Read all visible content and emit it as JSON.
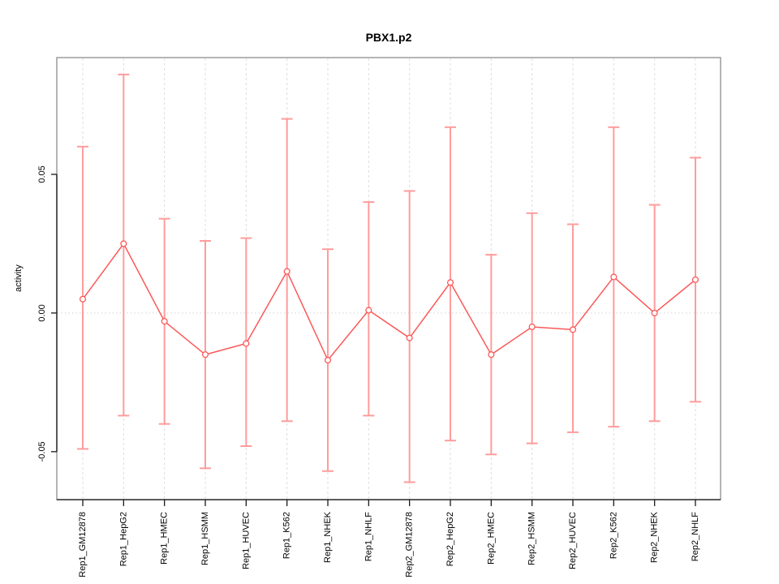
{
  "chart_data": {
    "type": "line",
    "title": "PBX1.p2",
    "xlabel": "",
    "ylabel": "activity",
    "legend": "none",
    "marker": "open-circle",
    "categories": [
      "Rep1_GM12878",
      "Rep1_HepG2",
      "Rep1_HMEC",
      "Rep1_HSMM",
      "Rep1_HUVEC",
      "Rep1_K562",
      "Rep1_NHEK",
      "Rep1_NHLF",
      "Rep2_GM12878",
      "Rep2_HepG2",
      "Rep2_HMEC",
      "Rep2_HSMM",
      "Rep2_HUVEC",
      "Rep2_K562",
      "Rep2_NHEK",
      "Rep2_NHLF"
    ],
    "series": [
      {
        "name": "activity",
        "values": [
          0.005,
          0.025,
          -0.003,
          -0.015,
          -0.011,
          0.015,
          -0.017,
          0.001,
          -0.009,
          0.011,
          -0.015,
          -0.005,
          -0.006,
          0.013,
          0.0,
          0.012
        ],
        "error_high": [
          0.06,
          0.086,
          0.034,
          0.026,
          0.027,
          0.07,
          0.023,
          0.04,
          0.044,
          0.067,
          0.021,
          0.036,
          0.032,
          0.067,
          0.039,
          0.056
        ],
        "error_low": [
          -0.049,
          -0.037,
          -0.04,
          -0.056,
          -0.048,
          -0.039,
          -0.057,
          -0.037,
          -0.061,
          -0.046,
          -0.051,
          -0.047,
          -0.043,
          -0.041,
          -0.039,
          -0.032
        ]
      }
    ],
    "yticks": {
      "values": [
        -0.05,
        0,
        0.05
      ],
      "labels": [
        "-0.05",
        "0.00",
        "0.05"
      ]
    },
    "ylim": [
      -0.067,
      0.092
    ],
    "grid": {
      "vertical": "light dashed line at every category",
      "horizontal": "light dotted line at y=0 only"
    },
    "colors": {
      "series": "#fb5858",
      "error_bars": "#ff9c9c",
      "gridlines": "#dcdcdc",
      "zero_line": "#d4d4d4",
      "box": "#9b9b9b",
      "axis": "#1a1a1a"
    }
  }
}
